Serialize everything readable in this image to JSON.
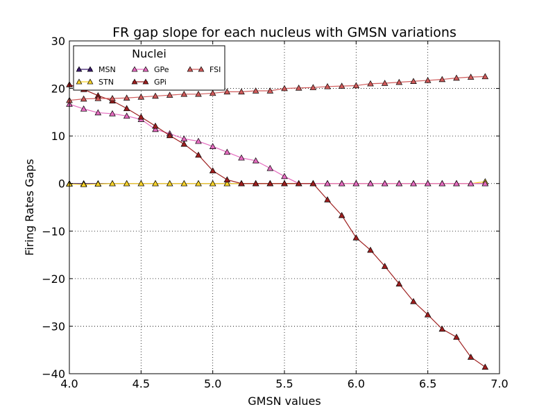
{
  "chart_data": {
    "type": "line",
    "title": "FR gap slope for each nucleus with GMSN variations",
    "xlabel": "GMSN values",
    "ylabel": "Firing Rates Gaps",
    "xlim": [
      4.0,
      7.0
    ],
    "ylim": [
      -40,
      30
    ],
    "xticks": [
      "4.0",
      "4.5",
      "5.0",
      "5.5",
      "6.0",
      "6.5",
      "7.0"
    ],
    "yticks": [
      "−40",
      "−30",
      "−20",
      "−10",
      "0",
      "10",
      "20",
      "30"
    ],
    "grid": true,
    "legend": {
      "title": "Nuclei",
      "position": "top-left",
      "columns": 3
    },
    "x": [
      4.0,
      4.1,
      4.2,
      4.3,
      4.4,
      4.5,
      4.6,
      4.7,
      4.8,
      4.9,
      5.0,
      5.1,
      5.2,
      5.3,
      5.4,
      5.5,
      5.6,
      5.7,
      5.8,
      5.9,
      6.0,
      6.1,
      6.2,
      6.3,
      6.4,
      6.5,
      6.6,
      6.7,
      6.8,
      6.9
    ],
    "series": [
      {
        "name": "MSN",
        "color": "#3b1a6e",
        "values": [
          0,
          0,
          0,
          0,
          0,
          0,
          0,
          0,
          0,
          0,
          0,
          0,
          0,
          0,
          0,
          0,
          0,
          0,
          0,
          0,
          0,
          0,
          0,
          0,
          0,
          0,
          0,
          0,
          0,
          0
        ]
      },
      {
        "name": "STN",
        "color": "#f7d22a",
        "values": [
          -0.1,
          -0.2,
          -0.1,
          0,
          0,
          0,
          0,
          0,
          0,
          0,
          0,
          0,
          0,
          0,
          0,
          0,
          0,
          0,
          0,
          0,
          0,
          0,
          0,
          0,
          0,
          0,
          0,
          0,
          0,
          0.4
        ]
      },
      {
        "name": "GPe",
        "color": "#e46bbf",
        "values": [
          16.7,
          15.7,
          14.9,
          14.7,
          14.2,
          13.5,
          11.4,
          10.5,
          9.4,
          8.9,
          7.8,
          6.6,
          5.4,
          4.8,
          3.2,
          1.5,
          0,
          0,
          0,
          0,
          0,
          0,
          0,
          0,
          0,
          0,
          0,
          0,
          0,
          0
        ]
      },
      {
        "name": "GPi",
        "color": "#9e1f1f",
        "values": [
          20.8,
          19.8,
          18.5,
          17.4,
          15.8,
          14.0,
          12.1,
          10.1,
          8.3,
          6.0,
          2.7,
          0.8,
          0,
          0,
          0,
          0,
          0,
          0,
          -3.4,
          -6.7,
          -11.4,
          -14.0,
          -17.4,
          -21.1,
          -24.8,
          -27.6,
          -30.6,
          -32.3,
          -36.5,
          -38.6
        ]
      },
      {
        "name": "FSI",
        "color": "#d05a5a",
        "values": [
          17.5,
          17.8,
          17.9,
          17.9,
          18.0,
          18.2,
          18.4,
          18.6,
          18.8,
          18.8,
          19.0,
          19.3,
          19.3,
          19.5,
          19.5,
          20.0,
          20.1,
          20.2,
          20.4,
          20.5,
          20.6,
          21.0,
          21.1,
          21.3,
          21.5,
          21.7,
          21.9,
          22.2,
          22.4,
          22.5
        ]
      }
    ]
  }
}
